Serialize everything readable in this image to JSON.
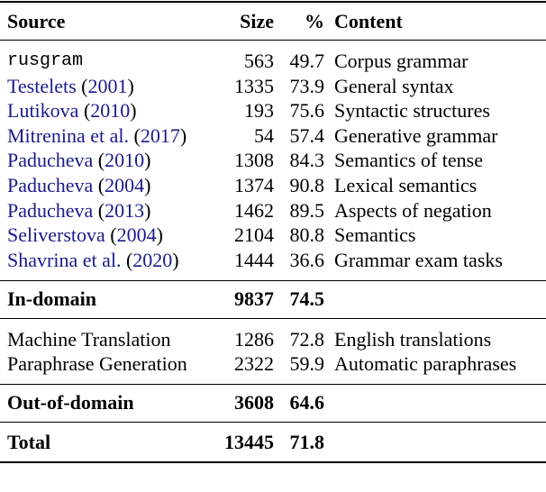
{
  "header": {
    "source": "Source",
    "size": "Size",
    "pct": "%",
    "content": "Content"
  },
  "link_color": "#1a1a8c",
  "in_domain_rows": [
    {
      "source": "rusgram",
      "year": "",
      "size": "563",
      "pct": "49.7",
      "content": "Corpus grammar"
    },
    {
      "source": "Testelets",
      "year": "2001",
      "size": "1335",
      "pct": "73.9",
      "content": "General syntax"
    },
    {
      "source": "Lutikova",
      "year": "2010",
      "size": "193",
      "pct": "75.6",
      "content": "Syntactic structures"
    },
    {
      "source": "Mitrenina et al.",
      "year": "2017",
      "size": "54",
      "pct": "57.4",
      "content": "Generative grammar"
    },
    {
      "source": "Paducheva",
      "year": "2010",
      "size": "1308",
      "pct": "84.3",
      "content": "Semantics of tense"
    },
    {
      "source": "Paducheva",
      "year": "2004",
      "size": "1374",
      "pct": "90.8",
      "content": "Lexical semantics"
    },
    {
      "source": "Paducheva",
      "year": "2013",
      "size": "1462",
      "pct": "89.5",
      "content": "Aspects of negation"
    },
    {
      "source": "Seliverstova",
      "year": "2004",
      "size": "2104",
      "pct": "80.8",
      "content": "Semantics"
    },
    {
      "source": "Shavrina et al.",
      "year": "2020",
      "size": "1444",
      "pct": "36.6",
      "content": "Grammar exam tasks"
    }
  ],
  "in_domain_total": {
    "label": "In-domain",
    "size": "9837",
    "pct": "74.5"
  },
  "out_domain_rows": [
    {
      "source": "Machine Translation",
      "size": "1286",
      "pct": "72.8",
      "content": "English translations"
    },
    {
      "source": "Paraphrase Generation",
      "size": "2322",
      "pct": "59.9",
      "content": "Automatic paraphrases"
    }
  ],
  "out_domain_total": {
    "label": "Out-of-domain",
    "size": "3608",
    "pct": "64.6"
  },
  "total": {
    "label": "Total",
    "size": "13445",
    "pct": "71.8"
  }
}
